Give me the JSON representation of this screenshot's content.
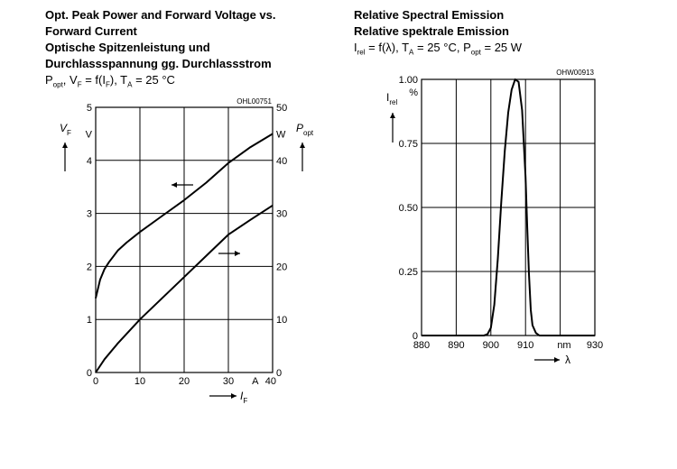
{
  "left": {
    "title": [
      "Opt. Peak Power and Forward Voltage vs.",
      "Forward Current",
      "Optische Spitzenleistung und",
      "Durchlassspannung gg. Durchlassstrom"
    ],
    "subtitle": "P_opt, V_F = f(I_F), T_A = 25 °C"
  },
  "right": {
    "title": [
      "Relative Spectral Emission",
      "Relative spektrale Emission"
    ],
    "subtitle": "I_rel = f(λ), T_A = 25 °C, P_opt = 25 W"
  },
  "chart_data": [
    {
      "type": "line",
      "code": "OHL00751",
      "x_unit": "A",
      "x_symbol": "I",
      "x_sub": "F",
      "xlim": [
        0,
        40
      ],
      "x_ticks": [
        "0",
        "10",
        "20",
        "30",
        "40"
      ],
      "y_left": {
        "symbol": "V",
        "sub": "F",
        "unit": "V",
        "lim": [
          0,
          5
        ],
        "ticks": [
          "0",
          "1",
          "2",
          "3",
          "4",
          "5"
        ]
      },
      "y_right": {
        "symbol": "P",
        "sub": "opt",
        "unit": "W",
        "lim": [
          0,
          50
        ],
        "ticks": [
          "0",
          "10",
          "20",
          "30",
          "40",
          "50"
        ]
      },
      "grid": true,
      "series": [
        {
          "axis": "left",
          "x": [
            0,
            1,
            2,
            3,
            5,
            7,
            10,
            15,
            20,
            25,
            30,
            35,
            40
          ],
          "y": [
            1.4,
            1.75,
            1.95,
            2.08,
            2.3,
            2.45,
            2.65,
            2.95,
            3.25,
            3.58,
            3.95,
            4.25,
            4.5
          ]
        },
        {
          "axis": "right",
          "x": [
            0,
            2,
            5,
            10,
            15,
            20,
            25,
            30,
            35,
            40
          ],
          "y": [
            0,
            2.5,
            5.5,
            10,
            14,
            18,
            22,
            26,
            28.8,
            31.5
          ]
        }
      ]
    },
    {
      "type": "line",
      "code": "OHW00913",
      "x_unit": "nm",
      "x_symbol": "λ",
      "xlim": [
        880,
        930
      ],
      "x_ticks": [
        "880",
        "890",
        "900",
        "910",
        "930"
      ],
      "y_symbol": "I",
      "y_sub": "rel",
      "y_unit": "%",
      "ylim": [
        0,
        1
      ],
      "y_ticks": [
        "0",
        "0.25",
        "0.50",
        "0.75",
        "1.00"
      ],
      "grid": true,
      "series": [
        {
          "x": [
            880,
            898,
            899,
            900,
            901,
            902,
            903,
            904,
            905,
            906,
            907,
            908,
            909,
            910,
            910.5,
            911,
            911.5,
            912,
            913,
            914,
            930
          ],
          "y": [
            0,
            0,
            0.005,
            0.03,
            0.12,
            0.3,
            0.52,
            0.72,
            0.87,
            0.96,
            1.0,
            0.99,
            0.88,
            0.62,
            0.42,
            0.24,
            0.1,
            0.04,
            0.01,
            0,
            0
          ]
        }
      ]
    }
  ]
}
